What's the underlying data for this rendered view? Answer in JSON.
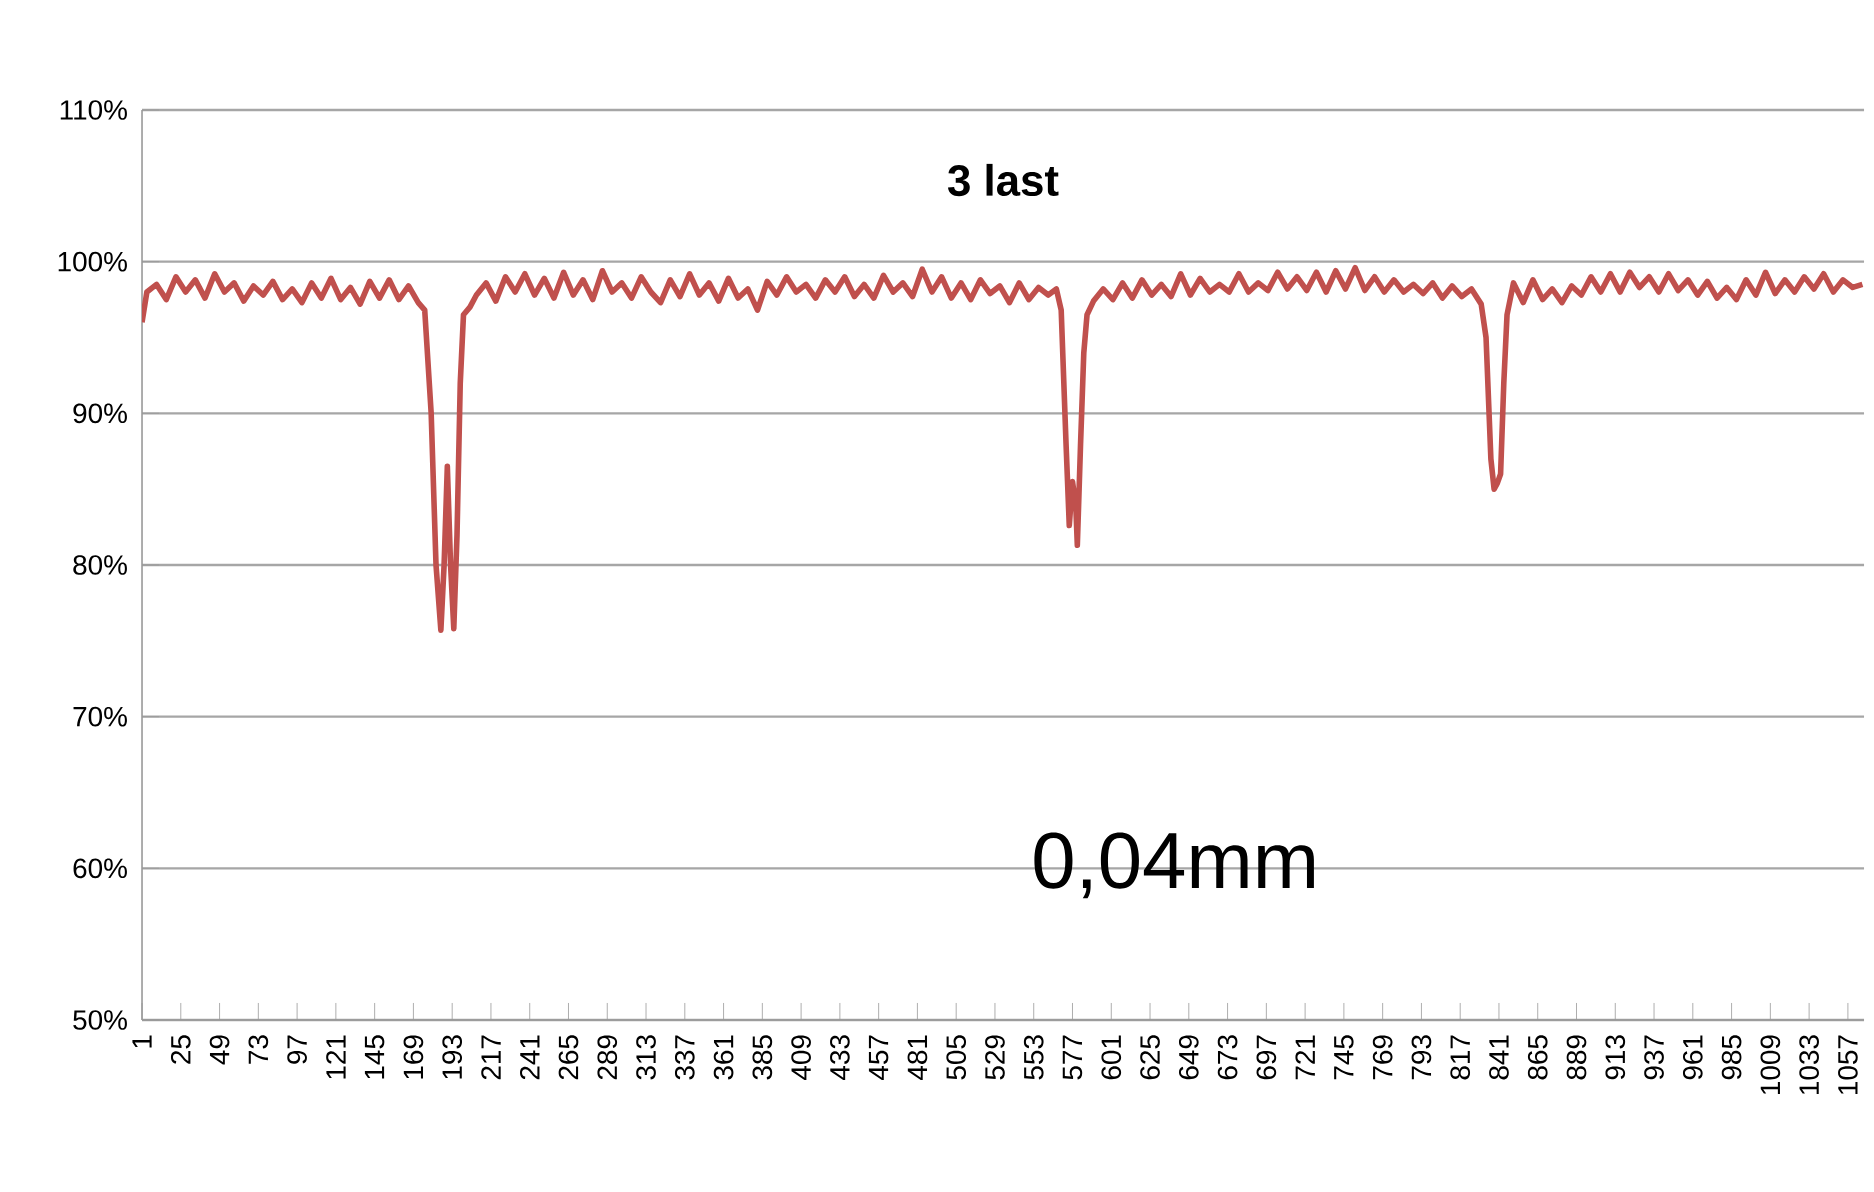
{
  "chart_data": {
    "type": "line",
    "title": "3 last",
    "annotations": [
      "0,04mm"
    ],
    "color": "#c0504d",
    "grid": "y",
    "line_style": "solid",
    "marker": "none",
    "xlim": [
      1,
      1067
    ],
    "xticks": [
      1,
      25,
      49,
      73,
      97,
      121,
      145,
      169,
      193,
      217,
      241,
      265,
      289,
      313,
      337,
      361,
      385,
      409,
      433,
      457,
      481,
      505,
      529,
      553,
      577,
      601,
      625,
      649,
      673,
      697,
      721,
      745,
      769,
      793,
      817,
      841,
      865,
      889,
      913,
      937,
      961,
      985,
      1009,
      1033,
      1057
    ],
    "ylim": [
      50,
      110
    ],
    "yticks": [
      {
        "value": 50,
        "label": "50%"
      },
      {
        "value": 60,
        "label": "60%"
      },
      {
        "value": 70,
        "label": "70%"
      },
      {
        "value": 80,
        "label": "80%"
      },
      {
        "value": 90,
        "label": "90%"
      },
      {
        "value": 100,
        "label": "100%"
      },
      {
        "value": 110,
        "label": "110%"
      }
    ],
    "x": [
      1,
      4,
      10,
      16,
      22,
      28,
      34,
      40,
      46,
      52,
      58,
      64,
      70,
      76,
      82,
      88,
      94,
      100,
      106,
      112,
      118,
      124,
      130,
      136,
      142,
      148,
      154,
      160,
      166,
      172,
      176,
      180,
      183,
      186,
      188,
      190,
      192,
      194,
      196,
      198,
      200,
      204,
      208,
      214,
      220,
      226,
      232,
      238,
      244,
      250,
      256,
      262,
      268,
      274,
      280,
      286,
      292,
      298,
      304,
      310,
      316,
      322,
      328,
      334,
      340,
      346,
      352,
      358,
      364,
      370,
      376,
      382,
      388,
      394,
      400,
      406,
      412,
      418,
      424,
      430,
      436,
      442,
      448,
      454,
      460,
      466,
      472,
      478,
      484,
      490,
      496,
      502,
      508,
      514,
      520,
      526,
      532,
      538,
      544,
      550,
      556,
      562,
      567,
      570,
      573,
      575,
      577,
      579,
      580,
      582,
      584,
      586,
      590,
      596,
      602,
      608,
      614,
      620,
      626,
      632,
      638,
      644,
      650,
      656,
      662,
      668,
      674,
      680,
      686,
      692,
      698,
      704,
      710,
      716,
      722,
      728,
      734,
      740,
      746,
      752,
      758,
      764,
      770,
      776,
      782,
      788,
      794,
      800,
      806,
      812,
      818,
      824,
      830,
      833,
      836,
      838,
      840,
      842,
      844,
      846,
      850,
      856,
      862,
      868,
      874,
      880,
      886,
      892,
      898,
      904,
      910,
      916,
      922,
      928,
      934,
      940,
      946,
      952,
      958,
      964,
      970,
      976,
      982,
      988,
      994,
      1000,
      1006,
      1012,
      1018,
      1024,
      1030,
      1036,
      1042,
      1048,
      1054,
      1060,
      1066
    ],
    "values": [
      96,
      98,
      98.5,
      97.5,
      99,
      98,
      98.8,
      97.6,
      99.2,
      98,
      98.6,
      97.4,
      98.4,
      97.8,
      98.7,
      97.5,
      98.2,
      97.3,
      98.6,
      97.6,
      98.9,
      97.5,
      98.3,
      97.2,
      98.7,
      97.6,
      98.8,
      97.5,
      98.4,
      97.3,
      96.8,
      90,
      80,
      75.7,
      80,
      86.5,
      80,
      75.8,
      82,
      92,
      96.5,
      97,
      97.8,
      98.6,
      97.4,
      99,
      98,
      99.2,
      97.8,
      98.9,
      97.6,
      99.3,
      97.8,
      98.8,
      97.5,
      99.4,
      98,
      98.6,
      97.6,
      99,
      98,
      97.3,
      98.8,
      97.7,
      99.2,
      97.8,
      98.6,
      97.4,
      98.9,
      97.6,
      98.2,
      96.8,
      98.7,
      97.8,
      99,
      98,
      98.5,
      97.6,
      98.8,
      98,
      99,
      97.7,
      98.5,
      97.6,
      99.1,
      98,
      98.6,
      97.7,
      99.5,
      98,
      99,
      97.6,
      98.6,
      97.5,
      98.8,
      97.9,
      98.4,
      97.3,
      98.6,
      97.5,
      98.3,
      97.8,
      98.2,
      96.8,
      88,
      82.6,
      85.5,
      84,
      81.3,
      88,
      94,
      96.5,
      97.4,
      98.2,
      97.5,
      98.6,
      97.6,
      98.8,
      97.8,
      98.5,
      97.7,
      99.2,
      97.8,
      98.9,
      98,
      98.5,
      98,
      99.2,
      98,
      98.6,
      98.1,
      99.3,
      98.2,
      99,
      98.1,
      99.3,
      98,
      99.4,
      98.2,
      99.6,
      98.1,
      99,
      98,
      98.8,
      98,
      98.5,
      97.9,
      98.6,
      97.6,
      98.4,
      97.7,
      98.2,
      97.2,
      95,
      87,
      85,
      85.4,
      86,
      92,
      96.5,
      98.6,
      97.3,
      98.8,
      97.5,
      98.2,
      97.3,
      98.4,
      97.8,
      99,
      98,
      99.2,
      98,
      99.3,
      98.3,
      99,
      98,
      99.2,
      98.1,
      98.8,
      97.8,
      98.7,
      97.6,
      98.3,
      97.5,
      98.8,
      97.8,
      99.3,
      97.9,
      98.8,
      98,
      99,
      98.2,
      99.2,
      98,
      98.8,
      98.3,
      98.5
    ]
  }
}
